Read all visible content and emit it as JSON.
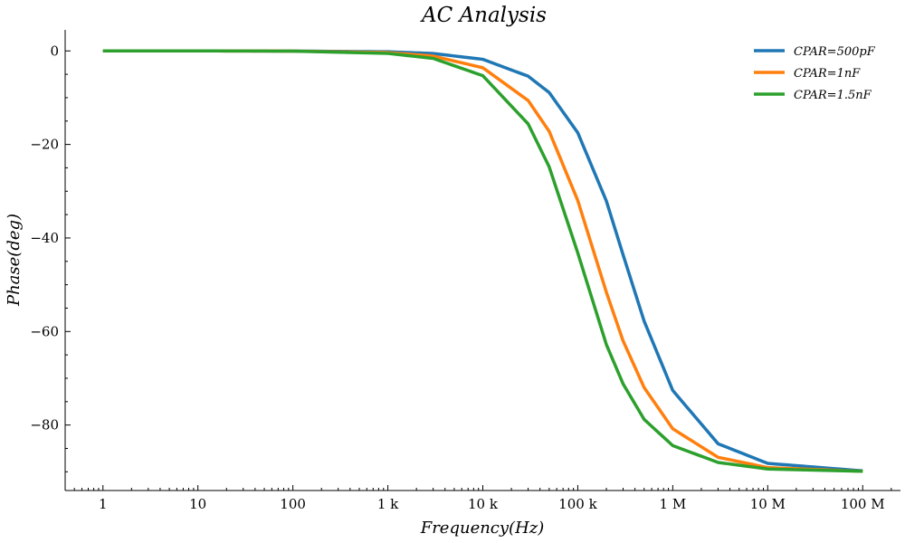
{
  "chart_data": {
    "type": "line",
    "title": "AC Analysis",
    "xlabel": "Frequency(Hz)",
    "ylabel": "Phase(deg)",
    "x_scale": "log",
    "xlim": [
      0.4,
      250000000
    ],
    "ylim": [
      -94,
      4.5
    ],
    "x_ticks": [
      {
        "value": 1,
        "label": "1"
      },
      {
        "value": 10,
        "label": "10"
      },
      {
        "value": 100,
        "label": "100"
      },
      {
        "value": 1000,
        "label": "1 k"
      },
      {
        "value": 10000,
        "label": "10 k"
      },
      {
        "value": 100000,
        "label": "100 k"
      },
      {
        "value": 1000000,
        "label": "1 M"
      },
      {
        "value": 10000000,
        "label": "10 M"
      },
      {
        "value": 100000000,
        "label": "100 M"
      }
    ],
    "y_ticks": [
      {
        "value": 0,
        "label": "0"
      },
      {
        "value": -20,
        "label": "−20"
      },
      {
        "value": -40,
        "label": "−40"
      },
      {
        "value": -60,
        "label": "−60"
      },
      {
        "value": -80,
        "label": "−80"
      }
    ],
    "grid": false,
    "legend_position": "top-right",
    "x": [
      1,
      10,
      100,
      1000,
      3000,
      10000,
      30000,
      50000,
      100000,
      200000,
      300000,
      500000,
      1000000,
      3000000,
      10000000,
      100000000
    ],
    "series": [
      {
        "name": "CPAR=500pF",
        "color": "#1f77b4",
        "values": [
          0,
          0,
          -0.02,
          -0.18,
          -0.55,
          -1.8,
          -5.4,
          -8.9,
          -17.5,
          -32.1,
          -43.6,
          -57.8,
          -72.6,
          -84.0,
          -88.2,
          -89.8
        ]
      },
      {
        "name": "CPAR=1nF",
        "color": "#ff7f0e",
        "values": [
          0,
          0,
          -0.04,
          -0.35,
          -1.1,
          -3.6,
          -10.6,
          -17.2,
          -32.0,
          -51.6,
          -62.0,
          -72.0,
          -80.8,
          -86.9,
          -89.1,
          -89.9
        ]
      },
      {
        "name": "CPAR=1.5nF",
        "color": "#2ca02c",
        "values": [
          0,
          0,
          -0.05,
          -0.53,
          -1.6,
          -5.3,
          -15.6,
          -24.8,
          -43.2,
          -62.8,
          -71.2,
          -78.8,
          -84.4,
          -88.0,
          -89.4,
          -89.9
        ]
      }
    ]
  }
}
